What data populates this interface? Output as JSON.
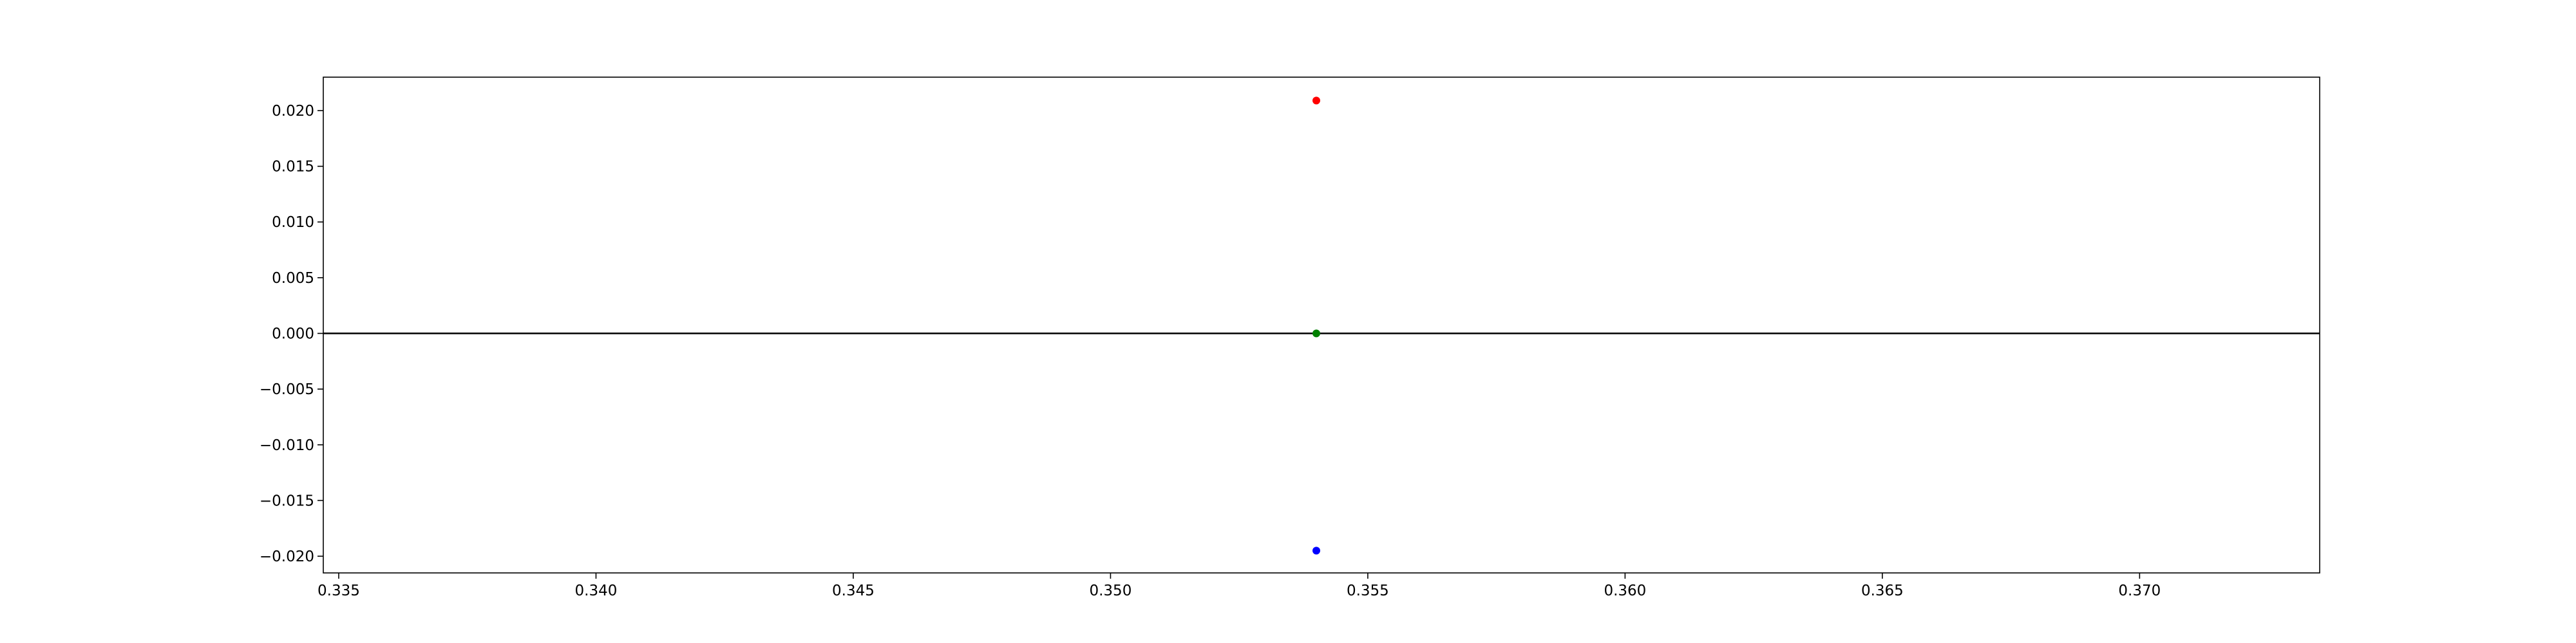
{
  "chart_data": {
    "type": "scatter",
    "title": "",
    "xlabel": "",
    "ylabel": "",
    "xlim": [
      0.3347,
      0.3735
    ],
    "ylim": [
      -0.0215,
      0.023
    ],
    "xticks": [
      0.335,
      0.34,
      0.345,
      0.35,
      0.355,
      0.36,
      0.365,
      0.37
    ],
    "xtick_labels": [
      "0.335",
      "0.340",
      "0.345",
      "0.350",
      "0.355",
      "0.360",
      "0.365",
      "0.370"
    ],
    "yticks": [
      0.02,
      0.015,
      0.01,
      0.005,
      0.0,
      -0.005,
      -0.01,
      -0.015,
      -0.02
    ],
    "ytick_labels": [
      "0.020",
      "0.015",
      "0.010",
      "0.005",
      "0.000",
      "−0.005",
      "−0.010",
      "−0.015",
      "−0.020"
    ],
    "grid": false,
    "reference_lines": [
      {
        "orientation": "horizontal",
        "y": 0.0,
        "color": "#000000"
      }
    ],
    "points": [
      {
        "x": 0.354,
        "y": 0.0209,
        "color": "#ff0000"
      },
      {
        "x": 0.354,
        "y": 0.0,
        "color": "#008000"
      },
      {
        "x": 0.354,
        "y": -0.0195,
        "color": "#0000ff"
      }
    ]
  }
}
